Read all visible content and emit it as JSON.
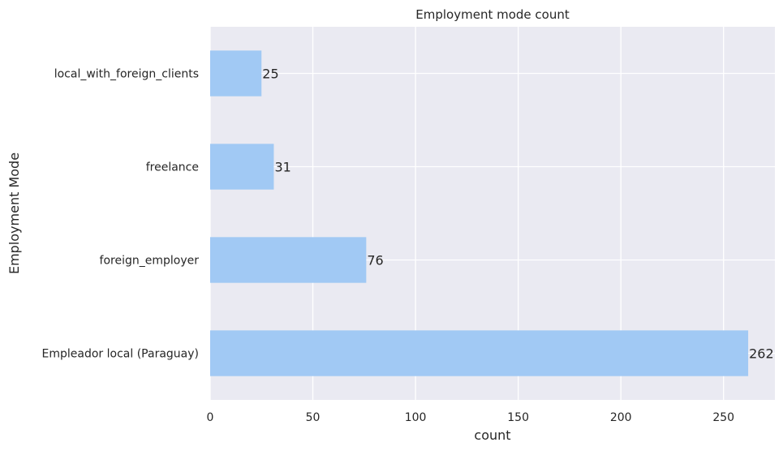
{
  "chart_data": {
    "type": "bar",
    "orientation": "horizontal",
    "title": "Employment mode count",
    "xlabel": "count",
    "ylabel": "Employment Mode",
    "categories": [
      "local_with_foreign_clients",
      "freelance",
      "foreign_employer",
      "Empleador local (Paraguay)"
    ],
    "values": [
      25,
      31,
      76,
      262
    ],
    "data_labels": [
      "25",
      "31",
      "76",
      "262"
    ],
    "xlim": [
      0,
      275
    ],
    "xticks": [
      0,
      50,
      100,
      150,
      200,
      250
    ],
    "xtick_labels": [
      "0",
      "50",
      "100",
      "150",
      "200",
      "250"
    ],
    "grid": true,
    "legend": "none",
    "colors": {
      "bar": "#a1c9f4",
      "plot_background": "#eaeaf2",
      "grid": "#ffffff",
      "text": "#262626"
    }
  }
}
